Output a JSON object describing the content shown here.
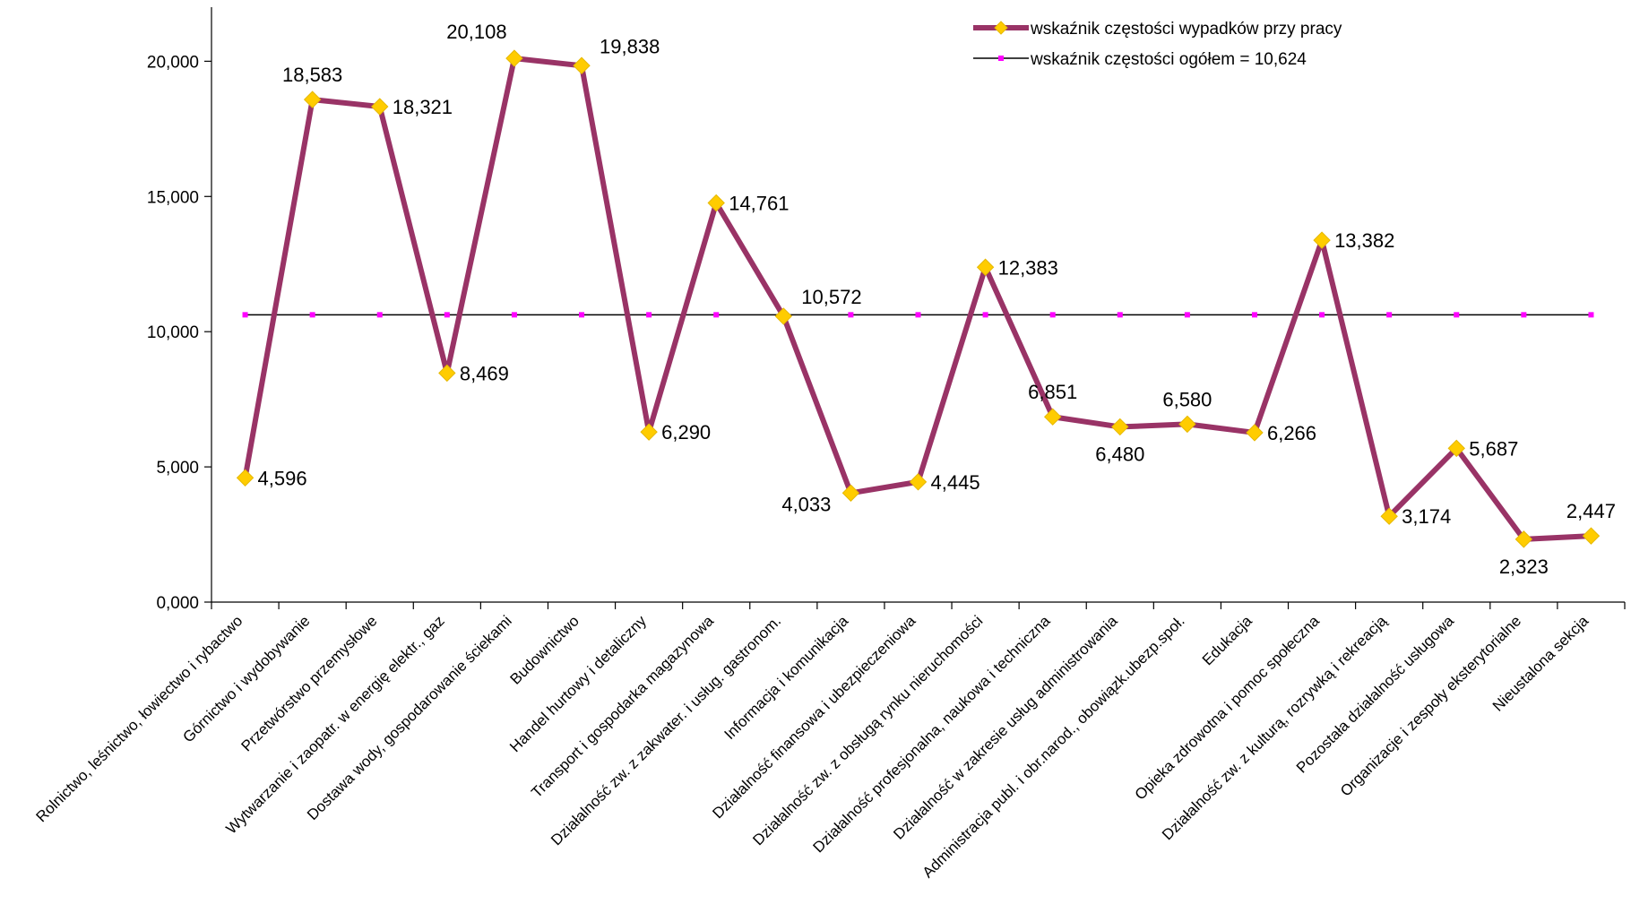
{
  "chart_data": {
    "type": "line",
    "title": "",
    "xlabel": "",
    "ylabel": "",
    "ylim": [
      0,
      20
    ],
    "yticks": [
      "0,000",
      "5,000",
      "10,000",
      "15,000",
      "20,000"
    ],
    "grid": false,
    "legend_position": "top-right",
    "categories": [
      "Rolnictwo, leśnictwo, łowiectwo i rybactwo",
      "Górnictwo i wydobywanie",
      "Przetwórstwo przemysłowe",
      "Wytwarzanie i zaopatr. w energię elektr., gaz",
      "Dostawa wody, gospodarowanie ściekami",
      "Budownictwo",
      "Handel hurtowy i detaliczny",
      "Transport i gospodarka magazynowa",
      "Działalność zw. z zakwater. i usług. gastronom.",
      "Informacja i komunikacja",
      "Działalność finansowa i ubezpieczeniowa",
      "Działalność zw. z obsługą rynku nieruchomości",
      "Działalność profesjonalna, naukowa i techniczna",
      "Działalność w zakresie usług administrowania",
      "Administracja publ. i obr.narod., obowiązk.ubezp.społ.",
      "Edukacja",
      "Opieka zdrowotna i pomoc społeczna",
      "Działalność zw. z kulturą, rozrywką i rekreacją",
      "Pozostała działalność usługowa",
      "Organizacje i zespoły eksterytorialne",
      "Nieustalona sekcja"
    ],
    "series": [
      {
        "name": "wskaźnik częstości wypadków przy pracy",
        "color": "#993366",
        "marker_color": "#FFCC00",
        "values": [
          4.596,
          18.583,
          18.321,
          8.469,
          20.108,
          19.838,
          6.29,
          14.761,
          10.572,
          4.033,
          4.445,
          12.383,
          6.851,
          6.48,
          6.58,
          6.266,
          13.382,
          3.174,
          5.687,
          2.323,
          2.447
        ],
        "labels": [
          "4,596",
          "18,583",
          "18,321",
          "8,469",
          "20,108",
          "19,838",
          "6,290",
          "14,761",
          "10,572",
          "4,033",
          "4,445",
          "12,383",
          "6,851",
          "6,480",
          "6,580",
          "6,266",
          "13,382",
          "3,174",
          "5,687",
          "2,323",
          "2,447"
        ]
      },
      {
        "name": "wskaźnik częstości ogółem = 10,624",
        "color": "#000000",
        "marker_color": "#FF00FF",
        "values": [
          10.624,
          10.624,
          10.624,
          10.624,
          10.624,
          10.624,
          10.624,
          10.624,
          10.624,
          10.624,
          10.624,
          10.624,
          10.624,
          10.624,
          10.624,
          10.624,
          10.624,
          10.624,
          10.624,
          10.624,
          10.624
        ]
      }
    ]
  }
}
